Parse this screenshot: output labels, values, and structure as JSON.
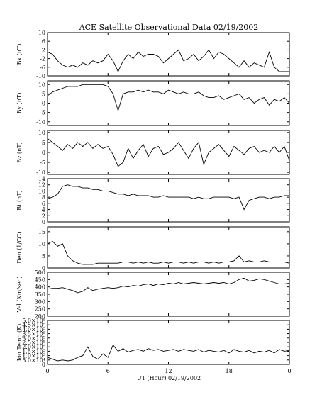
{
  "chart_data": {
    "type": "line",
    "title": "ACE Satellite Observational Data   02/19/2002",
    "xlabel": "UT (Hour)   02/19/2002",
    "xlim": [
      0,
      24
    ],
    "x_ticks": [
      "0",
      "6",
      "12",
      "18",
      "0"
    ],
    "x_tick_values": [
      0,
      6,
      12,
      18,
      24
    ],
    "panels": [
      {
        "ylabel": "Bx (nT)",
        "ylim": [
          -10,
          10
        ],
        "y_ticks": [
          "-10",
          "-6",
          "-2",
          "2",
          "6",
          "10"
        ],
        "y_tick_values": [
          -10,
          -6,
          -2,
          2,
          6,
          10
        ],
        "series": [
          {
            "x": [
              0,
              0.5,
              1,
              1.5,
              2,
              2.5,
              3,
              3.5,
              4,
              4.5,
              5,
              5.5,
              6,
              6.5,
              7,
              7.5,
              8,
              8.5,
              9,
              9.5,
              10,
              10.5,
              11,
              11.5,
              12,
              12.5,
              13,
              13.5,
              14,
              14.5,
              15,
              15.5,
              16,
              16.5,
              17,
              17.5,
              18,
              18.5,
              19,
              19.5,
              20,
              20.5,
              21,
              21.5,
              22,
              22.5,
              23,
              23.5,
              24
            ],
            "y": [
              1,
              0,
              -3,
              -5,
              -6,
              -5,
              -6,
              -4,
              -5,
              -3,
              -4,
              -3,
              0,
              -3,
              -8,
              -3,
              0,
              -2,
              1,
              -1,
              0,
              0,
              -1,
              -4,
              -2,
              0,
              2,
              -3,
              -2,
              0,
              -3,
              -1,
              2,
              -2,
              1,
              0,
              -2,
              -4,
              -6,
              -3,
              -6,
              -4,
              -5,
              -6,
              1,
              -6,
              -8,
              -8,
              -8
            ]
          }
        ]
      },
      {
        "ylabel": "By (nT)",
        "ylim": [
          -12,
          12
        ],
        "y_ticks": [
          "-10",
          "-5",
          "0",
          "5",
          "10"
        ],
        "y_tick_values": [
          -10,
          -5,
          0,
          5,
          10
        ],
        "series": [
          {
            "x": [
              0,
              0.5,
              1,
              1.5,
              2,
              2.5,
              3,
              3.5,
              4,
              4.5,
              5,
              5.5,
              6,
              6.5,
              7,
              7.5,
              8,
              8.5,
              9,
              9.5,
              10,
              10.5,
              11,
              11.5,
              12,
              12.5,
              13,
              13.5,
              14,
              14.5,
              15,
              15.5,
              16,
              16.5,
              17,
              17.5,
              18,
              18.5,
              19,
              19.5,
              20,
              20.5,
              21,
              21.5,
              22,
              22.5,
              23,
              23.5,
              24
            ],
            "y": [
              4,
              6,
              7,
              8,
              9,
              9,
              9,
              10,
              10,
              10,
              10,
              10,
              9,
              5,
              -4,
              5,
              6,
              6,
              7,
              6,
              7,
              6,
              6,
              5,
              7,
              6,
              5,
              6,
              5,
              5,
              6,
              4,
              3,
              3,
              4,
              2,
              3,
              4,
              5,
              2,
              3,
              0,
              2,
              3,
              -1,
              2,
              1,
              3,
              0
            ]
          }
        ]
      },
      {
        "ylabel": "Bz (nT)",
        "ylim": [
          -11,
          11
        ],
        "y_ticks": [
          "-10",
          "-5",
          "0",
          "5",
          "10"
        ],
        "y_tick_values": [
          -10,
          -5,
          0,
          5,
          10
        ],
        "series": [
          {
            "x": [
              0,
              0.5,
              1,
              1.5,
              2,
              2.5,
              3,
              3.5,
              4,
              4.5,
              5,
              5.5,
              6,
              6.5,
              7,
              7.5,
              8,
              8.5,
              9,
              9.5,
              10,
              10.5,
              11,
              11.5,
              12,
              12.5,
              13,
              13.5,
              14,
              14.5,
              15,
              15.5,
              16,
              16.5,
              17,
              17.5,
              18,
              18.5,
              19,
              19.5,
              20,
              20.5,
              21,
              21.5,
              22,
              22.5,
              23,
              23.5,
              24
            ],
            "y": [
              7,
              5,
              3,
              1,
              4,
              2,
              5,
              3,
              5,
              2,
              4,
              2,
              3,
              -1,
              -7,
              -5,
              2,
              -3,
              1,
              4,
              -2,
              2,
              3,
              -1,
              0,
              2,
              5,
              1,
              -3,
              2,
              5,
              -6,
              0,
              2,
              4,
              1,
              -2,
              3,
              1,
              -1,
              2,
              3,
              0,
              1,
              0,
              3,
              0,
              3,
              -4
            ]
          }
        ]
      },
      {
        "ylabel": "Bt (nT)",
        "ylim": [
          0,
          14
        ],
        "y_ticks": [
          "0",
          "2",
          "4",
          "6",
          "8",
          "10",
          "12",
          "14"
        ],
        "y_tick_values": [
          0,
          2,
          4,
          6,
          8,
          10,
          12,
          14
        ],
        "series": [
          {
            "x": [
              0,
              0.5,
              1,
              1.5,
              2,
              2.5,
              3,
              3.5,
              4,
              4.5,
              5,
              5.5,
              6,
              6.5,
              7,
              7.5,
              8,
              8.5,
              9,
              9.5,
              10,
              10.5,
              11,
              11.5,
              12,
              12.5,
              13,
              13.5,
              14,
              14.5,
              15,
              15.5,
              16,
              16.5,
              17,
              17.5,
              18,
              18.5,
              19,
              19.5,
              20,
              20.5,
              21,
              21.5,
              22,
              22.5,
              23,
              23.5,
              24
            ],
            "y": [
              7.5,
              8,
              9,
              11.5,
              12,
              11.5,
              11.5,
              11,
              11,
              10.5,
              10.5,
              10,
              10,
              9.5,
              9,
              9,
              8.5,
              9,
              8.5,
              8.5,
              8.5,
              8,
              8,
              8.5,
              8,
              8,
              8,
              8,
              8,
              7.5,
              8,
              7.5,
              7.5,
              8,
              8,
              8,
              8,
              7.5,
              8,
              4,
              7,
              7.5,
              8,
              8,
              7.5,
              8,
              8,
              8.5,
              8.5
            ]
          }
        ]
      },
      {
        "ylabel": "Den (1/CC)",
        "ylim": [
          0,
          17
        ],
        "y_ticks": [
          "0",
          "5",
          "10",
          "15"
        ],
        "y_tick_values": [
          0,
          5,
          10,
          15
        ],
        "series": [
          {
            "x": [
              0,
              0.5,
              1,
              1.5,
              2,
              2.5,
              3,
              3.5,
              4,
              4.5,
              5,
              5.5,
              6,
              6.5,
              7,
              7.5,
              8,
              8.5,
              9,
              9.5,
              10,
              10.5,
              11,
              11.5,
              12,
              12.5,
              13,
              13.5,
              14,
              14.5,
              15,
              15.5,
              16,
              16.5,
              17,
              17.5,
              18,
              18.5,
              19,
              19.5,
              20,
              20.5,
              21,
              21.5,
              22,
              22.5,
              23,
              23.5,
              24
            ],
            "y": [
              10,
              11,
              9,
              10,
              5,
              3,
              2,
              1.5,
              1.5,
              1.5,
              2,
              2,
              2,
              2,
              2,
              2.5,
              2.5,
              2,
              2.5,
              2,
              2.5,
              2,
              2,
              2.5,
              2,
              2.5,
              2.5,
              2,
              2.5,
              2,
              2.5,
              2.5,
              2,
              2.5,
              2,
              2.5,
              2.5,
              3,
              5,
              2.5,
              3,
              2.5,
              2.5,
              3,
              2.5,
              2.5,
              2.5,
              2.5,
              2
            ]
          }
        ]
      },
      {
        "ylabel": "Vel (Km/sec)",
        "ylim": [
          200,
          500
        ],
        "y_ticks": [
          "200",
          "250",
          "300",
          "350",
          "400",
          "450",
          "500"
        ],
        "y_tick_values": [
          200,
          250,
          300,
          350,
          400,
          450,
          500
        ],
        "series": [
          {
            "x": [
              0,
              0.5,
              1,
              1.5,
              2,
              2.5,
              3,
              3.5,
              4,
              4.5,
              5,
              5.5,
              6,
              6.5,
              7,
              7.5,
              8,
              8.5,
              9,
              9.5,
              10,
              10.5,
              11,
              11.5,
              12,
              12.5,
              13,
              13.5,
              14,
              14.5,
              15,
              15.5,
              16,
              16.5,
              17,
              17.5,
              18,
              18.5,
              19,
              19.5,
              20,
              20.5,
              21,
              21.5,
              22,
              22.5,
              23,
              23.5,
              24
            ],
            "y": [
              385,
              390,
              390,
              395,
              385,
              375,
              360,
              370,
              395,
              375,
              385,
              390,
              395,
              390,
              395,
              405,
              400,
              410,
              405,
              415,
              420,
              410,
              420,
              415,
              425,
              420,
              430,
              420,
              425,
              430,
              425,
              420,
              425,
              430,
              425,
              430,
              420,
              430,
              450,
              460,
              440,
              445,
              455,
              450,
              440,
              430,
              420,
              420,
              425
            ]
          }
        ]
      },
      {
        "ylabel": "Ion Temp (K)",
        "ylim": [
          0,
          500000
        ],
        "y_ticks": [
          "0",
          "5.0×10⁴",
          "1.0×10⁵",
          "1.5×10⁵",
          "2.0×10⁵",
          "2.5×10⁵",
          "3.0×10⁵",
          "3.5×10⁵",
          "4.0×10⁵",
          "4.5×10⁵",
          "5.0×10⁵"
        ],
        "y_tick_values": [
          0,
          50000,
          100000,
          150000,
          200000,
          250000,
          300000,
          350000,
          400000,
          450000,
          500000
        ],
        "series": [
          {
            "x": [
              0,
              0.5,
              1,
              1.5,
              2,
              2.5,
              3,
              3.5,
              4,
              4.5,
              5,
              5.5,
              6,
              6.5,
              7,
              7.5,
              8,
              8.5,
              9,
              9.5,
              10,
              10.5,
              11,
              11.5,
              12,
              12.5,
              13,
              13.5,
              14,
              14.5,
              15,
              15.5,
              16,
              16.5,
              17,
              17.5,
              18,
              18.5,
              19,
              19.5,
              20,
              20.5,
              21,
              21.5,
              22,
              22.5,
              23,
              23.5,
              24
            ],
            "y": [
              80000,
              60000,
              40000,
              50000,
              40000,
              50000,
              80000,
              100000,
              200000,
              90000,
              60000,
              120000,
              80000,
              220000,
              150000,
              180000,
              140000,
              160000,
              170000,
              150000,
              180000,
              160000,
              170000,
              150000,
              160000,
              170000,
              150000,
              170000,
              160000,
              150000,
              170000,
              140000,
              160000,
              150000,
              140000,
              160000,
              130000,
              170000,
              150000,
              140000,
              160000,
              130000,
              150000,
              140000,
              160000,
              130000,
              170000,
              150000,
              160000
            ]
          }
        ]
      }
    ]
  }
}
